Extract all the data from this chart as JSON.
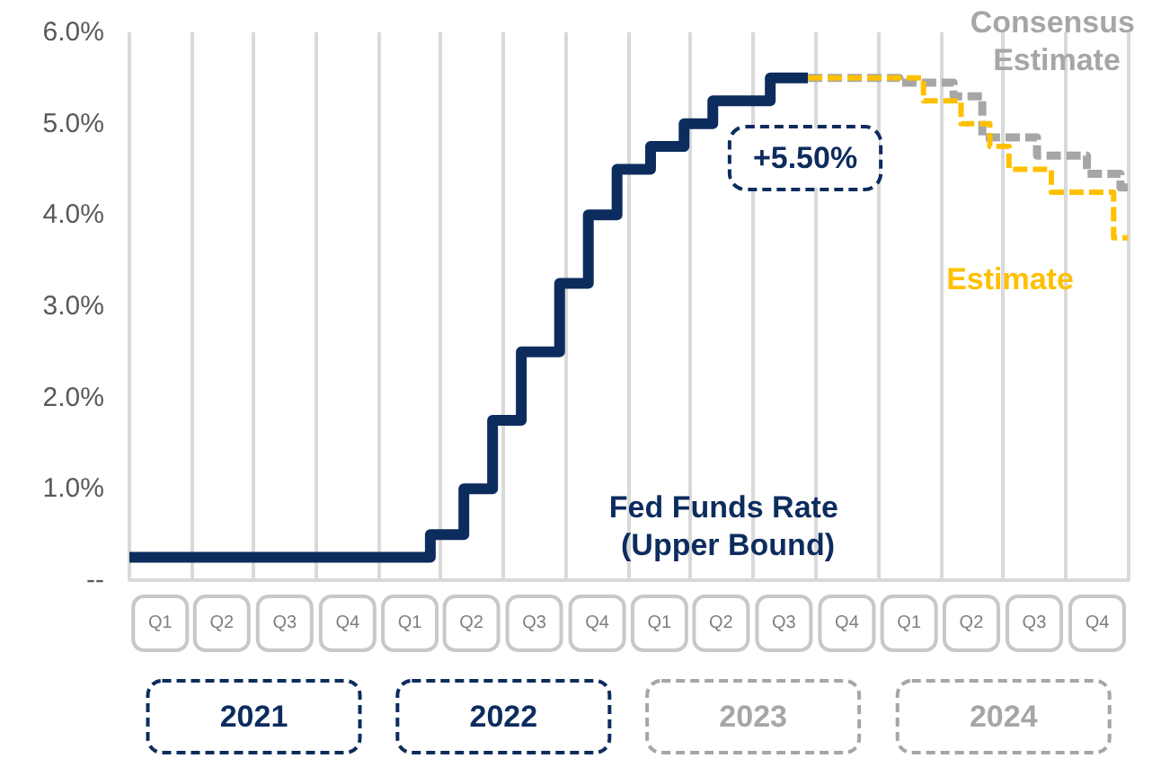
{
  "chart_data": {
    "type": "step",
    "xlim": [
      "2021-01-01",
      "2025-01-01"
    ],
    "xticks": [
      {
        "value": "2021-01-01",
        "label": null
      },
      {
        "value": "2021-02-15",
        "label": "Q1"
      },
      {
        "value": "2021-04-01",
        "label": null
      },
      {
        "value": "2021-05-16",
        "label": "Q2"
      },
      {
        "value": "2021-07-01",
        "label": null
      },
      {
        "value": "2021-08-16",
        "label": "Q3"
      },
      {
        "value": "2021-10-01",
        "label": null
      },
      {
        "value": "2021-11-16",
        "label": "Q4"
      },
      {
        "value": "2022-01-01",
        "label": null
      },
      {
        "value": "2022-02-15",
        "label": "Q1"
      },
      {
        "value": "2022-04-01",
        "label": null
      },
      {
        "value": "2022-05-16",
        "label": "Q2"
      },
      {
        "value": "2022-07-01",
        "label": null
      },
      {
        "value": "2022-08-16",
        "label": "Q3"
      },
      {
        "value": "2022-10-01",
        "label": null
      },
      {
        "value": "2022-11-16",
        "label": "Q4"
      },
      {
        "value": "2023-01-01",
        "label": null
      },
      {
        "value": "2023-02-15",
        "label": "Q1"
      },
      {
        "value": "2023-04-01",
        "label": null
      },
      {
        "value": "2023-05-16",
        "label": "Q2"
      },
      {
        "value": "2023-07-01",
        "label": null
      },
      {
        "value": "2023-08-16",
        "label": "Q3"
      },
      {
        "value": "2023-10-01",
        "label": null
      },
      {
        "value": "2023-11-16",
        "label": "Q4"
      },
      {
        "value": "2024-01-01",
        "label": null
      },
      {
        "value": "2024-02-15",
        "label": "Q1"
      },
      {
        "value": "2024-04-01",
        "label": null
      },
      {
        "value": "2024-05-16",
        "label": "Q2"
      },
      {
        "value": "2024-07-01",
        "label": null
      },
      {
        "value": "2024-08-16",
        "label": "Q3"
      },
      {
        "value": "2024-10-01",
        "label": null
      },
      {
        "value": "2024-11-16",
        "label": "Q4"
      },
      {
        "value": "2025-01-01",
        "label": null
      }
    ],
    "x2lim": [
      "2021-01-01",
      "2025-01-01"
    ],
    "x2ticks": [
      {
        "value": "2021-07-02",
        "label": "2021"
      },
      {
        "value": "2022-07-02",
        "label": "2022"
      },
      {
        "value": "2023-07-02",
        "label": "2023"
      },
      {
        "value": "2024-07-02",
        "label": "2024"
      }
    ],
    "ylim": [
      0,
      6
    ],
    "yticks": [
      {
        "value": 0,
        "label": "--"
      },
      {
        "value": 1,
        "label": "1.0%"
      },
      {
        "value": 2,
        "label": "2.0%"
      },
      {
        "value": 3,
        "label": "3.0%"
      },
      {
        "value": 4,
        "label": "4.0%"
      },
      {
        "value": 5,
        "label": "5.0%"
      },
      {
        "value": 6,
        "label": "6.0%"
      }
    ],
    "grid": "x",
    "legend": false,
    "annotations": [
      "+5.50%"
    ],
    "series": [
      {
        "name": "Fed Funds Rate (Upper Bound)",
        "color": "#0d2c5e",
        "line_style": "solid",
        "x": [
          "2021-01-01",
          "2022-03-17",
          "2022-05-05",
          "2022-06-16",
          "2022-07-28",
          "2022-09-22",
          "2022-11-03",
          "2022-12-15",
          "2023-02-02",
          "2023-03-23",
          "2023-05-04",
          "2023-07-27",
          "2023-09-20"
        ],
        "values": [
          0.25,
          0.5,
          1.0,
          1.75,
          2.5,
          3.25,
          4.0,
          4.5,
          4.75,
          5.0,
          5.25,
          5.5,
          5.5
        ]
      },
      {
        "name": "Consensus Estimate",
        "color": "#a6a6a6",
        "line_style": "dashed",
        "x": [
          "2023-09-20",
          "2024-02-01",
          "2024-04-20",
          "2024-06-01",
          "2024-08-20",
          "2024-11-01",
          "2024-12-20",
          "2024-12-31"
        ],
        "values": [
          5.5,
          5.45,
          5.3,
          4.85,
          4.65,
          4.45,
          4.3,
          4.3
        ]
      },
      {
        "name": "Estimate",
        "color": "#ffc000",
        "line_style": "dashed",
        "x": [
          "2023-09-20",
          "2024-03-07",
          "2024-05-01",
          "2024-06-12",
          "2024-07-10",
          "2024-09-10",
          "2024-12-10",
          "2024-12-31"
        ],
        "values": [
          5.5,
          5.25,
          5.0,
          4.75,
          4.5,
          4.25,
          3.75,
          3.75
        ]
      }
    ]
  }
}
